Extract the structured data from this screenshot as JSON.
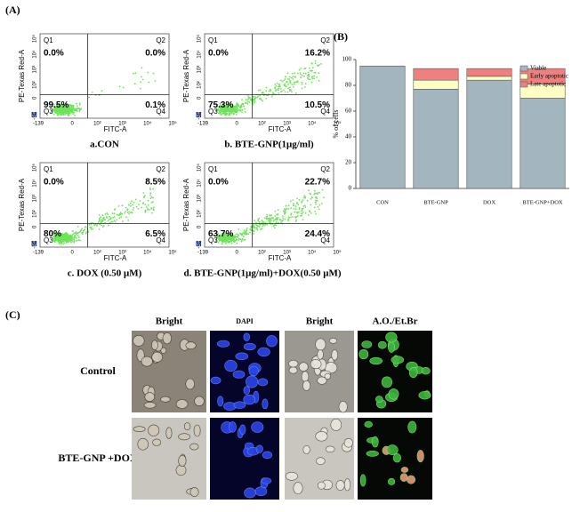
{
  "panel_a": {
    "label": "(A)",
    "y_axis_label": "PE-Texas Red-A",
    "x_axis_label": "FITC-A",
    "marker": "M",
    "y_tick_labels": [
      "-58",
      "0",
      "10²",
      "10³",
      "10⁴",
      "10⁵"
    ],
    "x_tick_labels": [
      "-139",
      "0",
      "10²",
      "10³",
      "10⁴",
      "10⁵"
    ],
    "quadrant_names": [
      "Q1",
      "Q2",
      "Q3",
      "Q4"
    ],
    "plots": [
      {
        "caption": "a.CON",
        "q1": "0.0%",
        "q2": "0.0%",
        "q3": "99.5%",
        "q4": "0.1%"
      },
      {
        "caption": "b. BTE-GNP(1μg/ml)",
        "q1": "0.0%",
        "q2": "16.2%",
        "q3": "75.3%",
        "q4": "10.5%"
      },
      {
        "caption": "c. DOX (0.50 μM)",
        "q1": "0.0%",
        "q2": "8.5%",
        "q3": "80%",
        "q4": "6.5%"
      },
      {
        "caption": "d. BTE-GNP(1μg/ml)+DOX(0.50 μM)",
        "q1": "0.0%",
        "q2": "22.7%",
        "q3": "63.7%",
        "q4": "24.4%"
      }
    ]
  },
  "chart_data": {
    "type": "stacked_bar",
    "label": "(B)",
    "y_label": "% of cells",
    "categories": [
      "CON",
      "BTE-GNP",
      "DOX",
      "BTE-GNP+DOX"
    ],
    "series": [
      {
        "name": "Viable",
        "color": "#a3b6c0",
        "values": [
          95,
          77,
          84,
          70
        ]
      },
      {
        "name": "Early apoptotic",
        "color": "#ffffc4",
        "values": [
          0,
          7,
          3,
          11
        ]
      },
      {
        "name": "Late apoptotic",
        "color": "#ee8080",
        "values": [
          0,
          9,
          6,
          12
        ]
      }
    ],
    "ylim": [
      0,
      100
    ],
    "yticks": [
      0,
      20,
      40,
      60,
      80,
      100
    ],
    "legend": "upper right"
  },
  "panel_c": {
    "label": "(C)",
    "columns": [
      "Bright",
      "DAPI",
      "Bright",
      "A.O./Et.Br"
    ],
    "rows": [
      "Control",
      "BTE-GNP +DOX"
    ]
  }
}
